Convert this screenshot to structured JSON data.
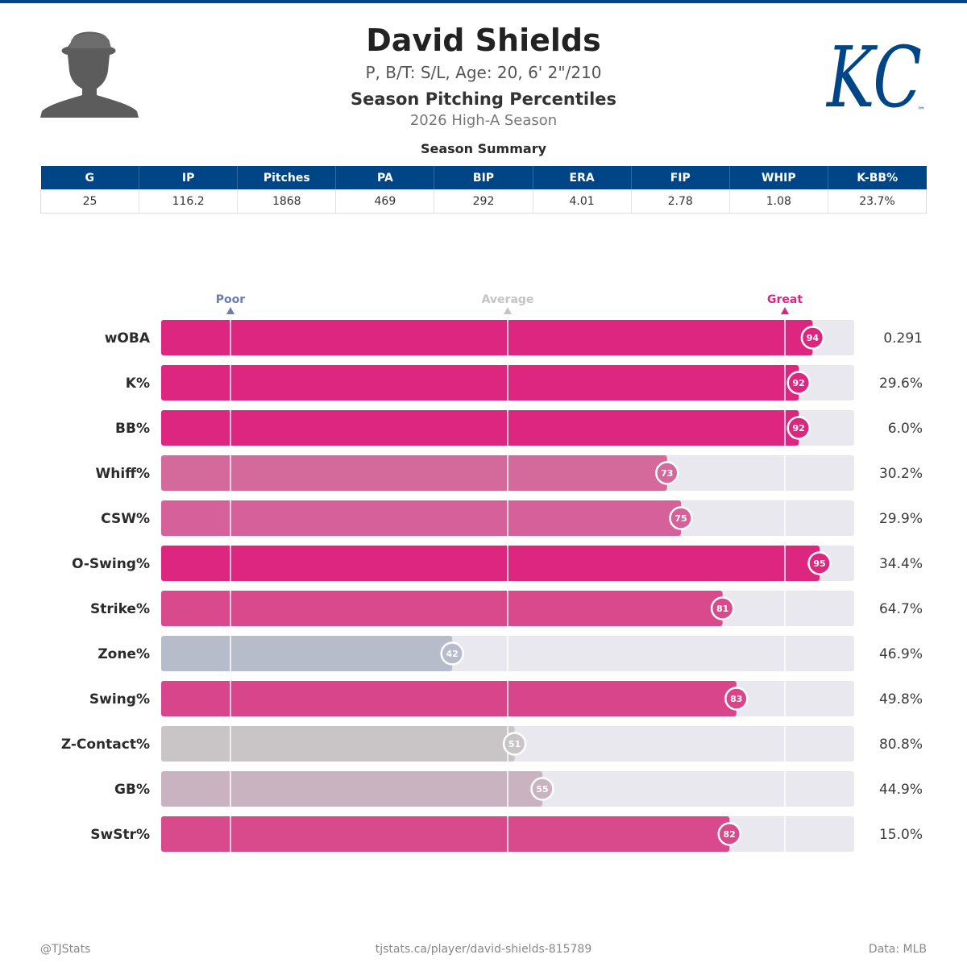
{
  "header": {
    "name": "David Shields",
    "bio": "P, B/T: S/L, Age: 20, 6' 2\"/210",
    "subtitle": "Season Pitching Percentiles",
    "season": "2026 High-A Season"
  },
  "team_logo": {
    "text": "KC",
    "trademark": "™",
    "color": "#004687"
  },
  "icons": {
    "headshot": "player-silhouette-icon",
    "logo": "kansas-city-royals-logo"
  },
  "colors": {
    "accent": "#004687",
    "great": "#dc267f",
    "poor": "#6a7bb5",
    "average": "#c4c4c4",
    "track": "#e8e8ee"
  },
  "summary": {
    "title": "Season Summary",
    "headers": [
      "G",
      "IP",
      "Pitches",
      "PA",
      "BIP",
      "ERA",
      "FIP",
      "WHIP",
      "K-BB%"
    ],
    "values": [
      "25",
      "116.2",
      "1868",
      "469",
      "292",
      "4.01",
      "2.78",
      "1.08",
      "23.7%"
    ]
  },
  "chart_data": {
    "type": "bar",
    "orientation": "horizontal",
    "categories": [
      "wOBA",
      "K%",
      "BB%",
      "Whiff%",
      "CSW%",
      "O-Swing%",
      "Strike%",
      "Zone%",
      "Swing%",
      "Z-Contact%",
      "GB%",
      "SwStr%"
    ],
    "values": [
      94,
      92,
      92,
      73,
      75,
      95,
      81,
      42,
      83,
      51,
      55,
      82
    ],
    "stat_values": [
      "0.291",
      "29.6%",
      "6.0%",
      "30.2%",
      "29.9%",
      "34.4%",
      "64.7%",
      "46.9%",
      "49.8%",
      "80.8%",
      "44.9%",
      "15.0%"
    ],
    "xlim": [
      0,
      100
    ],
    "reference_lines": [
      {
        "label": "Poor",
        "value": 10,
        "color": "#6a7bb5"
      },
      {
        "label": "Average",
        "value": 50,
        "color": "#c4c4c4"
      },
      {
        "label": "Great",
        "value": 90,
        "color": "#dc267f"
      }
    ],
    "bar_colors": [
      "#dc267f",
      "#dc267f",
      "#dc267f",
      "#d46a9b",
      "#d5609a",
      "#dc267f",
      "#d84a8c",
      "#b6bcca",
      "#d8458a",
      "#c9c5c7",
      "#cab3c1",
      "#d84a8c"
    ]
  },
  "footer": {
    "left": "@TJStats",
    "center": "tjstats.ca/player/david-shields-815789",
    "right": "Data: MLB"
  }
}
